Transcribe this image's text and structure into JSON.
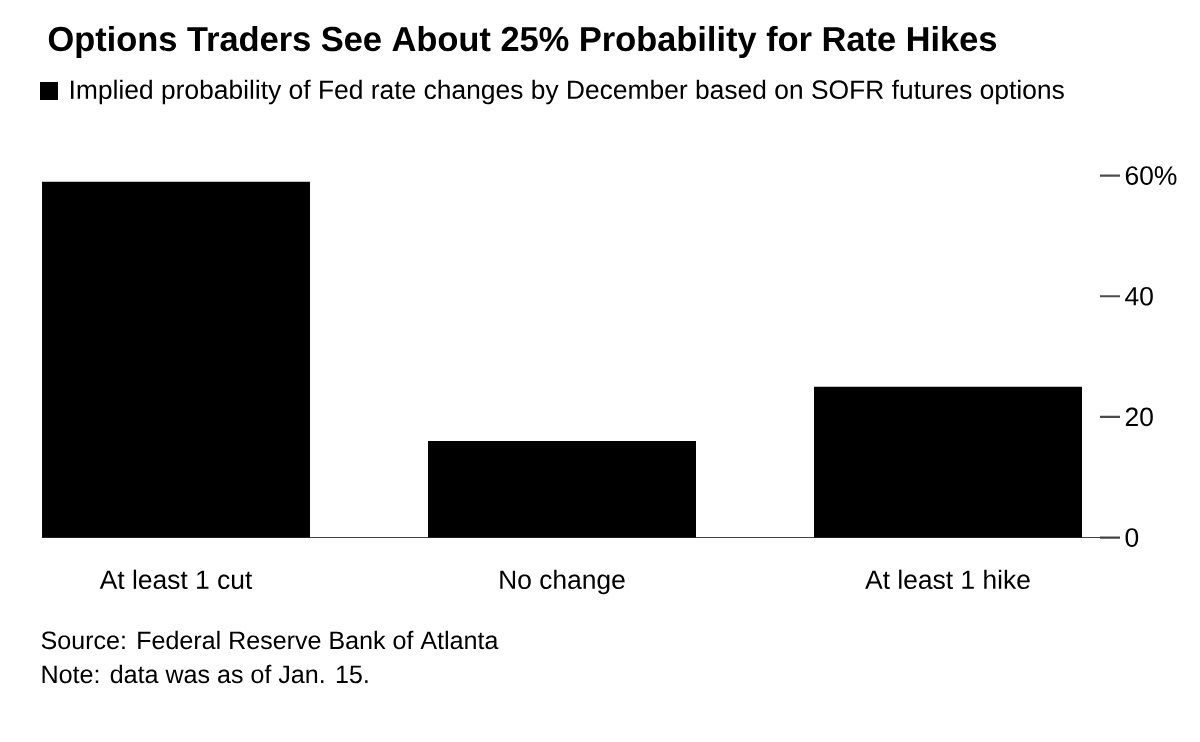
{
  "chart_data": {
    "type": "bar",
    "title": "Options Traders See About 25% Probability for Rate Hikes",
    "categories": [
      "At least 1 cut",
      "No change",
      "At least 1 hike"
    ],
    "series": [
      {
        "name": "Implied probability of Fed rate changes by December based on SOFR futures options",
        "color": "#000000",
        "values": [
          59,
          16,
          25
        ]
      }
    ],
    "ylim": [
      0,
      60
    ],
    "yticks": [
      0,
      20,
      40,
      {
        "value": 60,
        "label": "60%"
      }
    ],
    "legend": "top left",
    "annotations": [
      "Source: Federal Reserve Bank of Atlanta",
      "Note: data was as of Jan. 15."
    ]
  }
}
